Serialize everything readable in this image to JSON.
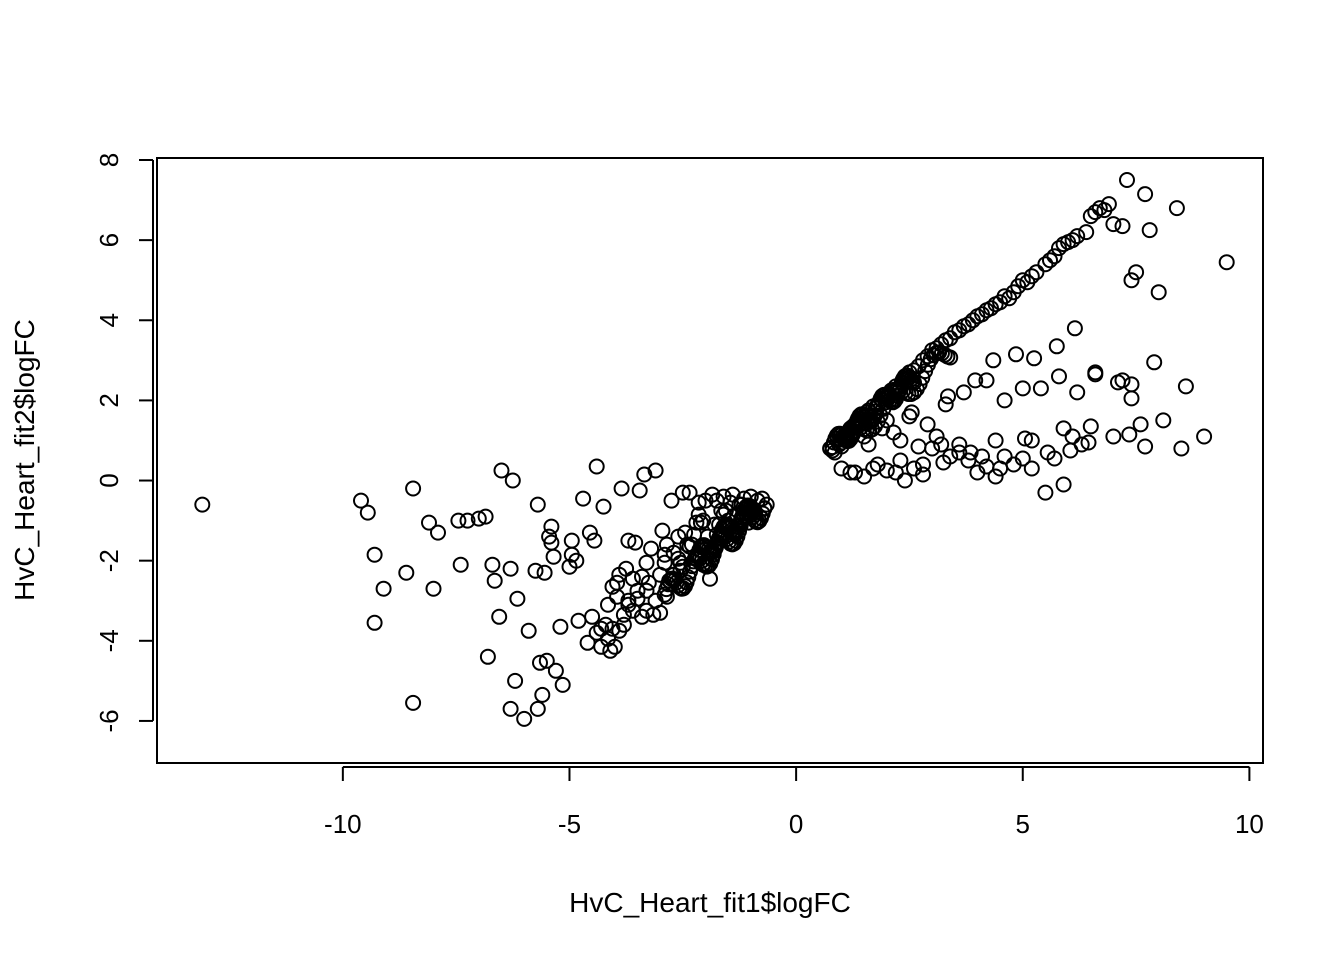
{
  "chart_data": {
    "type": "scatter",
    "title": "",
    "xlabel": "HvC_Heart_fit1$logFC",
    "ylabel": "HvC_Heart_fit2$logFC",
    "xlim": [
      -14.1,
      10.3
    ],
    "ylim": [
      -7.05,
      8.05
    ],
    "x_ticks": [
      -10,
      -5,
      0,
      5,
      10
    ],
    "x_tick_labels": [
      "-10",
      "-5",
      "0",
      "5",
      "10"
    ],
    "y_ticks": [
      -6,
      -4,
      -2,
      0,
      2,
      4,
      6,
      8
    ],
    "y_tick_labels": [
      "-6",
      "-4",
      "-2",
      "0",
      "2",
      "4",
      "6",
      "8"
    ],
    "marker": "open-circle",
    "points": {
      "x": [
        -13.1,
        -9.6,
        -9.45,
        -9.3,
        -9.3,
        -9.1,
        -8.6,
        -8.45,
        -8.45,
        -8.1,
        -8.0,
        -7.9,
        -7.45,
        -7.4,
        -7.25,
        -7.0,
        -6.85,
        -6.8,
        -6.7,
        -6.65,
        -6.55,
        -6.5,
        -6.3,
        -6.3,
        -6.25,
        -6.2,
        -6.15,
        -6.0,
        -5.9,
        -5.75,
        -5.7,
        -5.7,
        -5.65,
        -5.6,
        -5.55,
        -5.5,
        -5.45,
        -5.4,
        -5.4,
        -5.35,
        -5.3,
        -5.2,
        -5.15,
        -5.0,
        -4.95,
        -4.95,
        -4.85,
        -4.8,
        -4.7,
        -4.6,
        -4.55,
        -4.5,
        -4.45,
        -4.4,
        -4.4,
        -4.3,
        -4.25,
        -4.2,
        -4.15,
        -4.1,
        -4.05,
        -4.0,
        -3.95,
        -3.9,
        -3.85,
        -3.8,
        -3.75,
        -3.7,
        -3.7,
        -3.6,
        -3.55,
        -3.5,
        -3.45,
        -3.4,
        -3.35,
        -3.3,
        -3.3,
        -3.2,
        -3.1,
        -3.1,
        -3.0,
        -2.95,
        -2.85,
        -2.8,
        -2.75,
        -2.7,
        -2.6,
        -2.55,
        -2.5,
        -2.45,
        -2.35,
        -2.3,
        -2.2,
        -2.15,
        -2.05,
        -1.95,
        -1.85,
        -1.75,
        -1.65,
        -1.6,
        -1.5,
        -1.45,
        -1.4,
        -1.3,
        -1.2,
        -1.15,
        -1.05,
        -0.95,
        -0.85,
        -0.75,
        -0.7,
        -0.65,
        -2.9,
        -3.4,
        -3.8,
        -4.05,
        -3.9,
        -2.5,
        -2.25,
        -1.9,
        -1.35,
        -1.05,
        -3.6,
        -3.0,
        -2.7,
        -2.05,
        -1.7,
        -3.3,
        -2.1,
        -2.9,
        -1.6,
        -2.4,
        -3.5,
        -2.6,
        -1.8,
        -4.3,
        -3.95,
        -3.25,
        -2.15,
        -1.55,
        -2.85,
        -3.7,
        -1.25,
        -2.35,
        -1.0,
        -2.0,
        -1.3,
        -2.55,
        -3.15,
        -4.15,
        -0.9,
        -1.75,
        0.75,
        0.8,
        0.85,
        0.95,
        1.0,
        1.05,
        1.1,
        1.15,
        1.2,
        1.25,
        1.3,
        1.35,
        1.4,
        1.45,
        1.5,
        1.55,
        1.6,
        1.7,
        1.75,
        1.8,
        1.9,
        1.95,
        2.0,
        2.1,
        2.2,
        2.25,
        2.35,
        2.4,
        2.5,
        2.6,
        2.7,
        2.8,
        2.9,
        3.0,
        3.1,
        3.2,
        3.3,
        3.4,
        3.5,
        3.6,
        3.7,
        3.8,
        3.9,
        4.0,
        4.1,
        4.2,
        4.3,
        4.4,
        4.5,
        4.6,
        4.7,
        4.8,
        4.9,
        5.0,
        5.1,
        5.2,
        5.3,
        5.5,
        5.6,
        5.7,
        5.8,
        5.9,
        6.0,
        6.1,
        6.2,
        6.4,
        6.5,
        6.6,
        6.7,
        6.8,
        6.9,
        7.0,
        7.2,
        7.3,
        7.4,
        7.5,
        7.7,
        7.8,
        8.0,
        8.4,
        1.0,
        1.3,
        1.5,
        1.8,
        2.0,
        2.2,
        2.4,
        2.6,
        2.8,
        3.0,
        3.2,
        3.4,
        3.6,
        3.8,
        4.0,
        4.2,
        4.4,
        4.6,
        4.8,
        5.0,
        5.2,
        5.5,
        5.7,
        5.9,
        6.1,
        6.3,
        6.5,
        6.6,
        7.0,
        7.2,
        7.4,
        7.6,
        7.9,
        8.1,
        8.5,
        9.0,
        9.5,
        1.9,
        2.3,
        2.7,
        3.1,
        3.6,
        4.1,
        4.5,
        5.2,
        5.9,
        6.6,
        7.1,
        7.4,
        7.7,
        8.6,
        1.5,
        2.0,
        2.5,
        2.9,
        3.3,
        3.7,
        4.2,
        4.6,
        5.0,
        5.4,
        5.8,
        6.2,
        1.6,
        2.15,
        2.55,
        3.35,
        3.95,
        4.35,
        4.85,
        5.25,
        5.75,
        6.15,
        1.2,
        1.7,
        2.3,
        2.8,
        3.25,
        3.85,
        4.4,
        5.05,
        5.55,
        6.05,
        6.45,
        7.35
      ],
      "y": [
        -0.6,
        -0.5,
        -0.8,
        -1.85,
        -3.55,
        -2.7,
        -2.3,
        -0.2,
        -5.55,
        -1.05,
        -2.7,
        -1.3,
        -1.0,
        -2.1,
        -1.0,
        -0.95,
        -0.9,
        -4.4,
        -2.1,
        -2.5,
        -3.4,
        0.25,
        -2.2,
        -5.7,
        0.0,
        -5.0,
        -2.95,
        -5.95,
        -3.75,
        -2.25,
        -0.6,
        -5.7,
        -4.55,
        -5.35,
        -2.3,
        -4.5,
        -1.4,
        -1.55,
        -1.15,
        -1.9,
        -4.75,
        -3.65,
        -5.1,
        -2.15,
        -1.5,
        -1.85,
        -2.0,
        -3.5,
        -0.45,
        -4.05,
        -1.3,
        -3.4,
        -1.5,
        0.35,
        -3.8,
        -4.15,
        -0.65,
        -3.6,
        -3.1,
        -4.25,
        -2.65,
        -4.15,
        -2.9,
        -3.75,
        -0.2,
        -3.6,
        -2.2,
        -3.0,
        -1.5,
        -3.25,
        -1.55,
        -2.75,
        -0.25,
        -3.4,
        0.15,
        -2.05,
        -3.25,
        -1.7,
        0.25,
        -3.0,
        -2.35,
        -1.25,
        -1.6,
        -2.5,
        -0.5,
        -1.8,
        -1.4,
        -2.25,
        -0.3,
        -1.3,
        -0.3,
        -1.6,
        -1.05,
        -0.55,
        -1.0,
        -1.4,
        -0.35,
        -0.5,
        -0.75,
        -0.4,
        -1.0,
        -0.55,
        -0.35,
        -0.85,
        -0.6,
        -0.45,
        -0.65,
        -0.75,
        -0.5,
        -0.45,
        -0.7,
        -0.6,
        -2.05,
        -2.4,
        -3.35,
        -3.7,
        -2.35,
        -2.15,
        -1.35,
        -2.45,
        -1.35,
        -1.05,
        -2.45,
        -3.3,
        -2.35,
        -2.1,
        -1.1,
        -2.75,
        -1.05,
        -1.85,
        -0.85,
        -1.6,
        -2.95,
        -1.95,
        -1.1,
        -3.7,
        -2.55,
        -2.55,
        -0.85,
        -0.75,
        -2.9,
        -3.1,
        -0.6,
        -1.65,
        -0.4,
        -0.5,
        -1.15,
        -2.05,
        -3.35,
        -3.95,
        -0.85,
        -1.35,
        0.8,
        0.75,
        0.7,
        0.9,
        0.95,
        1.05,
        1.1,
        1.2,
        1.3,
        1.15,
        1.4,
        1.5,
        1.55,
        1.45,
        1.6,
        1.7,
        1.75,
        1.85,
        1.8,
        1.9,
        2.0,
        2.05,
        2.1,
        2.25,
        2.35,
        2.3,
        2.5,
        2.55,
        2.7,
        2.75,
        2.85,
        3.0,
        3.1,
        3.25,
        3.3,
        3.4,
        3.5,
        3.55,
        3.7,
        3.75,
        3.85,
        3.9,
        4.0,
        4.1,
        4.15,
        4.25,
        4.3,
        4.4,
        4.45,
        4.6,
        4.55,
        4.7,
        4.85,
        5.0,
        4.95,
        5.1,
        5.2,
        5.4,
        5.5,
        5.6,
        5.8,
        5.9,
        5.95,
        6.0,
        6.1,
        6.2,
        6.6,
        6.7,
        6.8,
        6.75,
        6.9,
        6.4,
        6.35,
        7.5,
        5.0,
        5.2,
        7.15,
        6.25,
        4.7,
        6.8,
        0.3,
        0.2,
        0.1,
        0.4,
        0.25,
        0.2,
        0.0,
        0.3,
        0.15,
        0.8,
        0.9,
        0.6,
        0.7,
        0.5,
        0.2,
        0.35,
        0.1,
        0.6,
        0.4,
        0.55,
        0.3,
        -0.3,
        0.55,
        -0.1,
        1.1,
        0.9,
        1.35,
        2.65,
        1.1,
        2.5,
        2.4,
        1.4,
        2.95,
        1.5,
        0.8,
        1.1,
        5.45,
        1.3,
        1.0,
        0.85,
        1.1,
        0.9,
        0.6,
        0.3,
        1.0,
        1.3,
        2.7,
        2.45,
        2.05,
        0.85,
        2.35,
        1.1,
        1.5,
        1.6,
        1.4,
        1.9,
        2.2,
        2.5,
        2.0,
        2.3,
        2.3,
        2.6,
        2.2,
        0.9,
        1.2,
        1.7,
        2.1,
        2.5,
        3.0,
        3.15,
        3.05,
        3.35,
        3.8,
        0.2,
        0.3,
        0.5,
        0.4,
        0.45,
        0.7,
        1.0,
        1.05,
        0.7,
        0.75,
        0.95,
        1.15
      ]
    }
  }
}
